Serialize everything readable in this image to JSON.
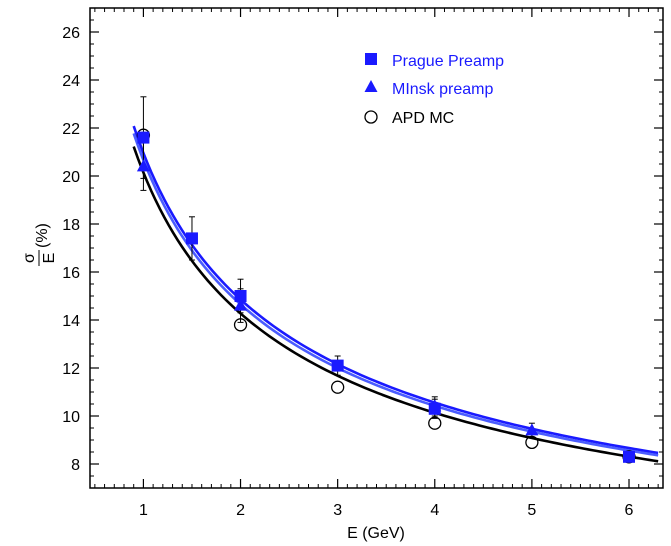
{
  "chart_data": {
    "type": "scatter",
    "xlabel": "E (GeV)",
    "ylabel": {
      "numerator": "σ",
      "denominator": "E",
      "suffix": "(%)"
    },
    "xlim": [
      0.45,
      6.35
    ],
    "ylim": [
      7.0,
      27.0
    ],
    "x_ticks": [
      1,
      2,
      3,
      4,
      5,
      6
    ],
    "y_ticks": [
      8,
      10,
      12,
      14,
      16,
      18,
      20,
      22,
      24,
      26
    ],
    "grid": false,
    "legend_position": "top-right",
    "series": [
      {
        "name": "Prague Preamp",
        "marker": "square",
        "color": "#1a1aff",
        "x": [
          1.0,
          1.5,
          2.0,
          3.0,
          4.0,
          6.0
        ],
        "y": [
          21.6,
          17.4,
          15.0,
          12.1,
          10.3,
          8.3
        ],
        "yerr": [
          1.7,
          0.9,
          0.7,
          0.4,
          0.4,
          0.2
        ]
      },
      {
        "name": "MInsk preamp",
        "marker": "triangle",
        "color": "#1a1aff",
        "x": [
          1.0,
          2.0,
          4.0,
          5.0
        ],
        "y": [
          20.4,
          14.6,
          10.4,
          9.4
        ],
        "yerr": [
          1.0,
          0.7,
          0.4,
          0.3
        ]
      },
      {
        "name": "APD MC",
        "marker": "circle-open",
        "color": "#000000",
        "x": [
          1.0,
          2.0,
          3.0,
          4.0,
          5.0,
          6.0
        ],
        "y": [
          21.7,
          13.8,
          11.2,
          9.7,
          8.9,
          8.3
        ]
      }
    ],
    "fits": [
      {
        "name": "Prague Preamp fit",
        "color": "#1a1aff",
        "x": [
          0.9,
          6.3
        ],
        "a": 20.9,
        "b": 1.5
      },
      {
        "name": "MInsk preamp fit",
        "color": "#4a5cff",
        "x": [
          0.9,
          6.3
        ],
        "a": 20.6,
        "b": 1.6
      },
      {
        "name": "APD MC fit",
        "color": "#000000",
        "x": [
          0.9,
          6.3
        ],
        "a": 20.1,
        "b": 1.3
      }
    ]
  }
}
